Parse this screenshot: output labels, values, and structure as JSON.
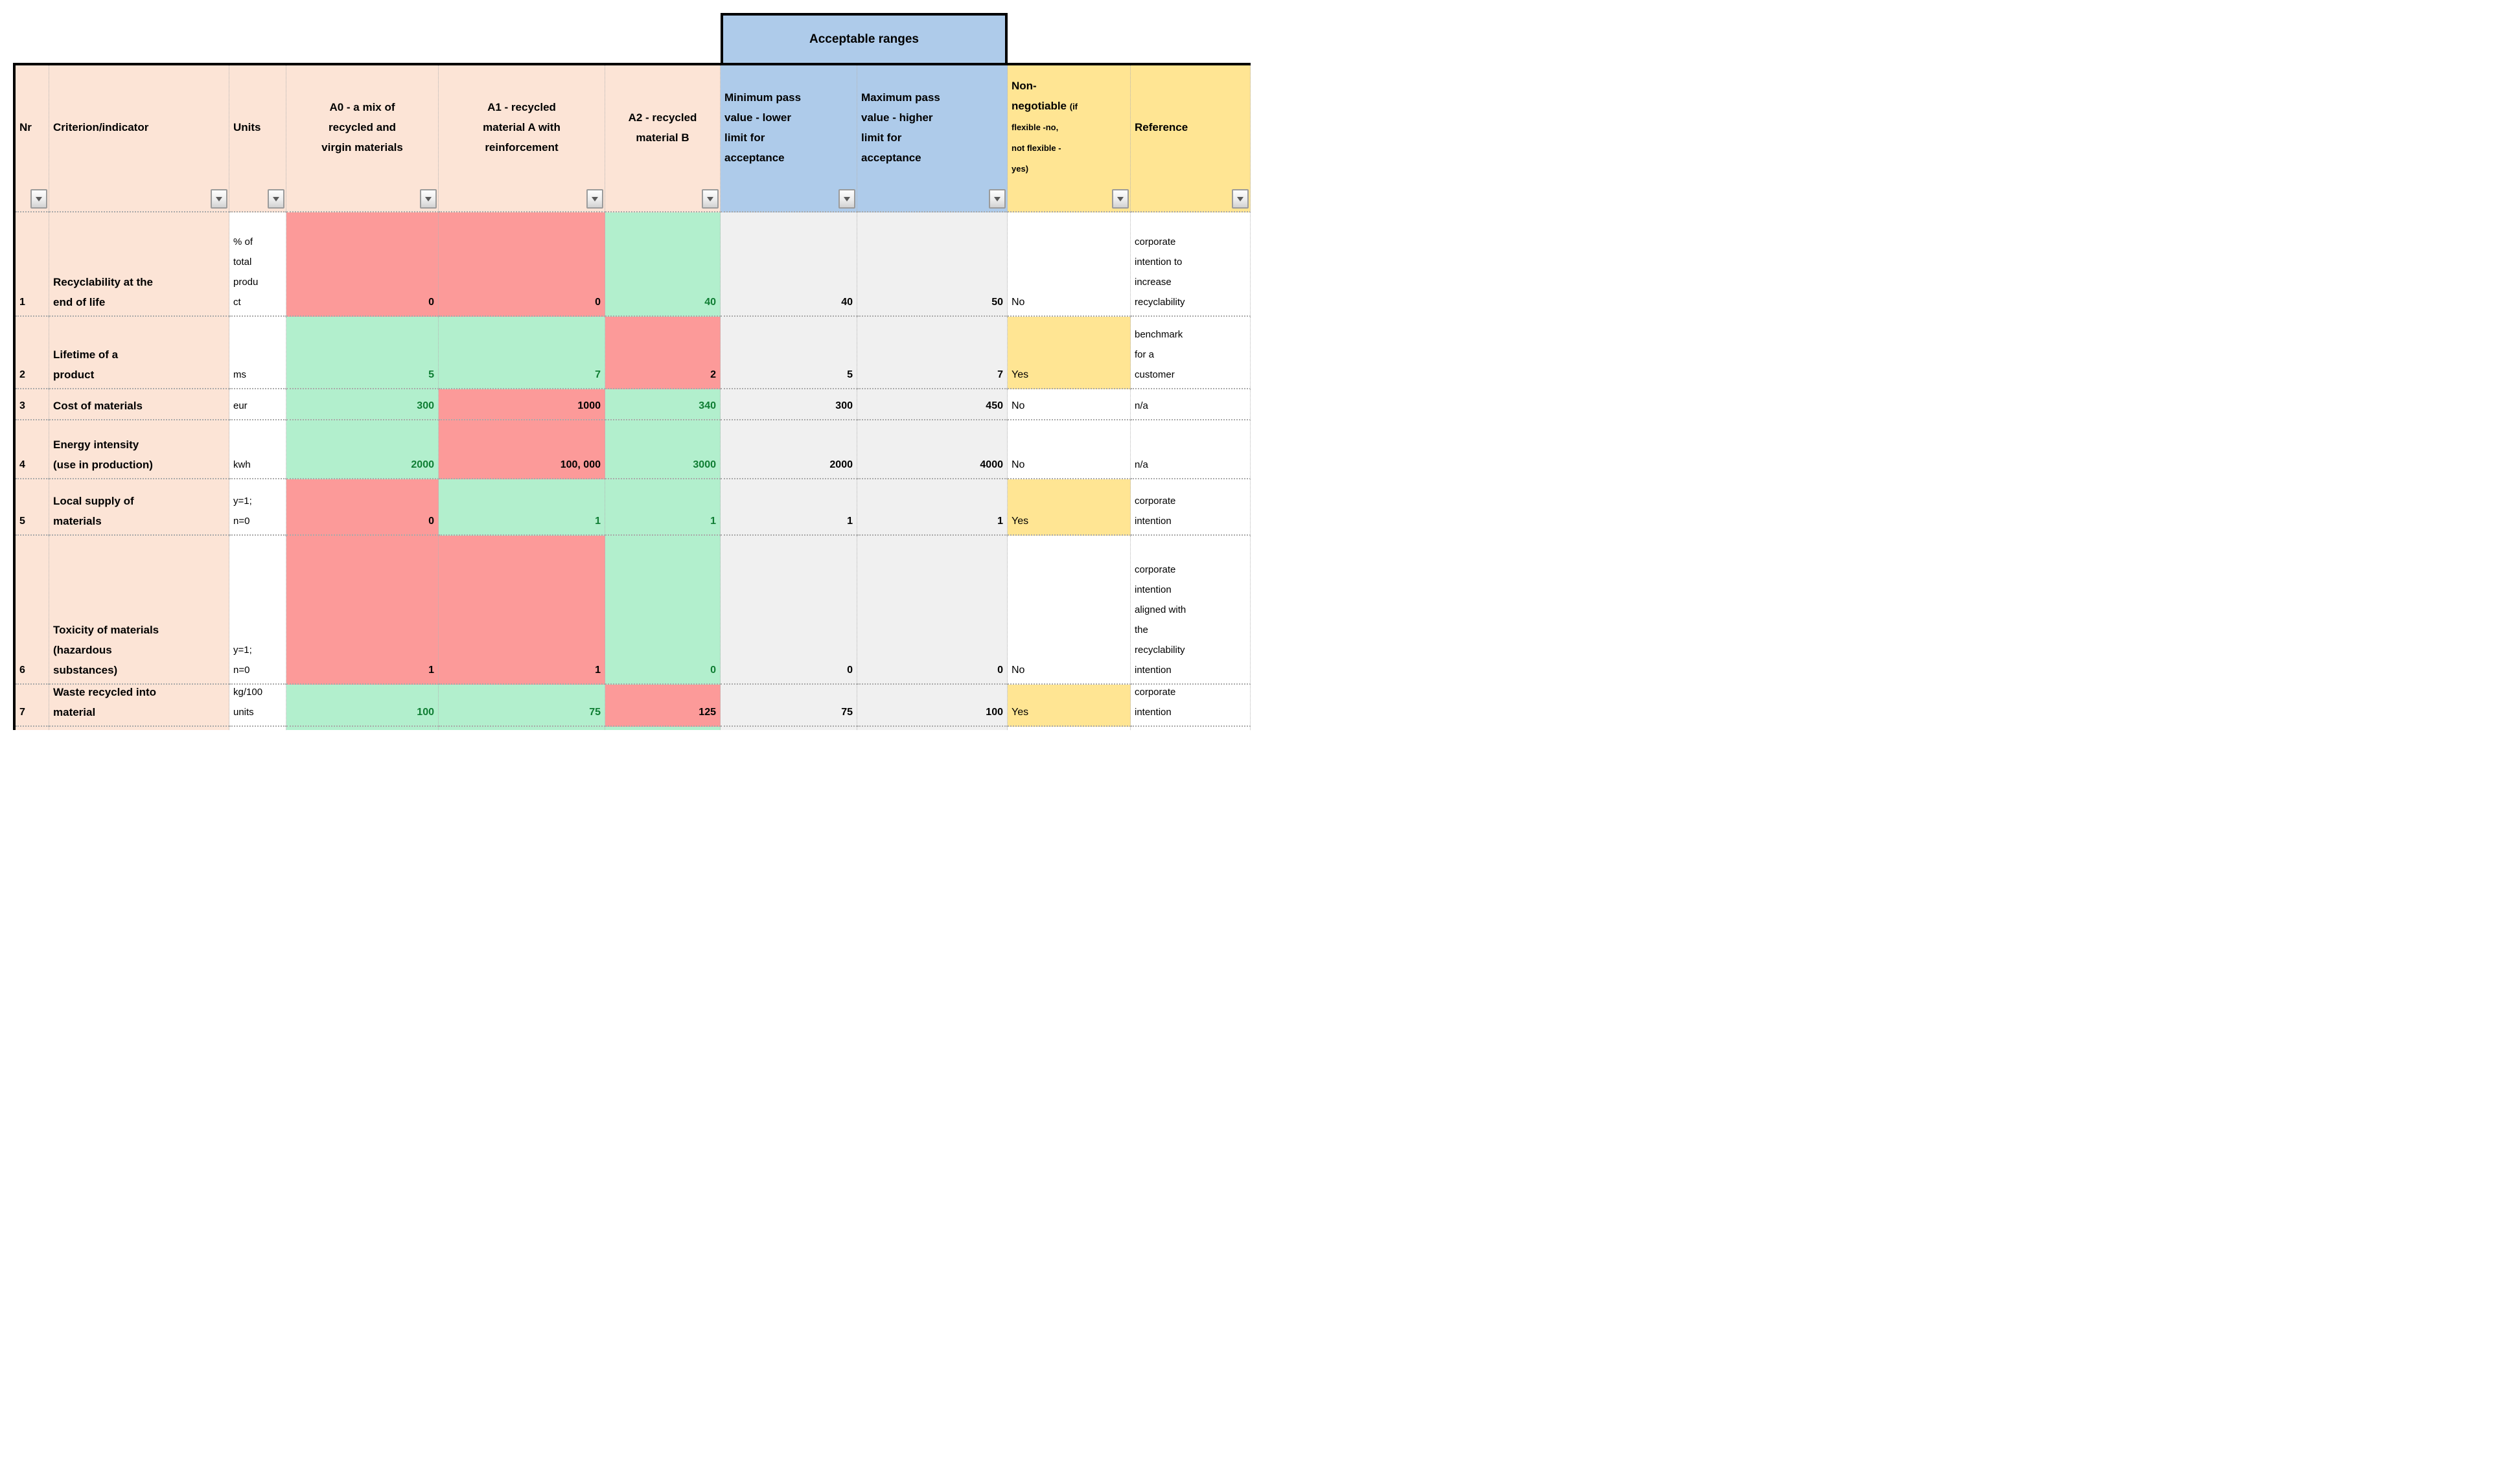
{
  "banner": {
    "label": "Acceptable ranges"
  },
  "colors": {
    "banner_blue": "#AECBEA",
    "header_peach": "#FCE4D6",
    "header_yellow": "#FFE593",
    "fail_red": "#FC9A99",
    "pass_green": "#B2EFCD",
    "range_gray": "#F0F0F0",
    "pass_text_green": "#0F7D33"
  },
  "columns": [
    {
      "id": "nr",
      "label": "Nr",
      "bg": "peach",
      "align": "left"
    },
    {
      "id": "criterion",
      "label": "Criterion/indicator",
      "bg": "peach",
      "align": "left"
    },
    {
      "id": "units",
      "label": "Units",
      "bg": "peach",
      "align": "left"
    },
    {
      "id": "a0",
      "label": "A0 - a mix of\nrecycled and\nvirgin materials",
      "bg": "peach",
      "align": "center"
    },
    {
      "id": "a1",
      "label": "A1 - recycled\nmaterial A with\nreinforcement",
      "bg": "peach",
      "align": "center"
    },
    {
      "id": "a2",
      "label": "A2 - recycled\nmaterial B",
      "bg": "peach",
      "align": "center"
    },
    {
      "id": "min",
      "label": "Minimum pass\nvalue - lower\nlimit for\nacceptance",
      "bg": "blue",
      "align": "left"
    },
    {
      "id": "max",
      "label": "Maximum pass\nvalue - higher\nlimit for\nacceptance",
      "bg": "blue",
      "align": "left"
    },
    {
      "id": "nonneg",
      "label": "Non-\nnegotiable ",
      "note": "(if\nflexible -no,\nnot flexible -\nyes)",
      "bg": "yellow",
      "align": "left"
    },
    {
      "id": "reference",
      "label": "Reference",
      "bg": "yellow",
      "align": "left"
    }
  ],
  "rows": [
    {
      "nr": "1",
      "criterion": "Recyclability at the\nend of life",
      "units": "% of\ntotal\nprodu\nct",
      "a0": {
        "v": "0",
        "bg": "red"
      },
      "a1": {
        "v": "0",
        "bg": "red"
      },
      "a2": {
        "v": "40",
        "bg": "green"
      },
      "min": "40",
      "max": "50",
      "nonneg": {
        "v": "No",
        "bg": "white"
      },
      "reference": "corporate\nintention to\nincrease\nrecyclability"
    },
    {
      "nr": "2",
      "criterion": "Lifetime of a\nproduct",
      "units": "ms",
      "a0": {
        "v": "5",
        "bg": "green"
      },
      "a1": {
        "v": "7",
        "bg": "green"
      },
      "a2": {
        "v": "2",
        "bg": "red"
      },
      "min": "5",
      "max": "7",
      "nonneg": {
        "v": "Yes",
        "bg": "yellow"
      },
      "reference": "benchmark\nfor a\ncustomer"
    },
    {
      "nr": "3",
      "criterion": "Cost of materials",
      "units": "eur",
      "a0": {
        "v": "300",
        "bg": "green"
      },
      "a1": {
        "v": "1000",
        "bg": "red"
      },
      "a2": {
        "v": "340",
        "bg": "green"
      },
      "min": "300",
      "max": "450",
      "nonneg": {
        "v": "No",
        "bg": "white"
      },
      "reference": "n/a"
    },
    {
      "nr": "4",
      "criterion": "Energy intensity\n(use in production)",
      "units": "kwh",
      "a0": {
        "v": "2000",
        "bg": "green"
      },
      "a1": {
        "v": "100, 000",
        "bg": "red"
      },
      "a2": {
        "v": "3000",
        "bg": "green"
      },
      "min": "2000",
      "max": "4000",
      "nonneg": {
        "v": "No",
        "bg": "white"
      },
      "reference": "n/a"
    },
    {
      "nr": "5",
      "criterion": "Local supply of\nmaterials",
      "units": "y=1;\nn=0",
      "a0": {
        "v": "0",
        "bg": "red"
      },
      "a1": {
        "v": "1",
        "bg": "green"
      },
      "a2": {
        "v": "1",
        "bg": "green"
      },
      "min": "1",
      "max": "1",
      "nonneg": {
        "v": "Yes",
        "bg": "yellow"
      },
      "reference": "corporate\nintention"
    },
    {
      "nr": "6",
      "criterion": "Toxicity of materials\n(hazardous\nsubstances)",
      "units": "y=1;\nn=0",
      "a0": {
        "v": "1",
        "bg": "red"
      },
      "a1": {
        "v": "1",
        "bg": "red"
      },
      "a2": {
        "v": "0",
        "bg": "green"
      },
      "min": "0",
      "max": "0",
      "nonneg": {
        "v": "No",
        "bg": "white"
      },
      "reference": "corporate\nintention\naligned with\nthe\nrecyclability\nintention"
    },
    {
      "nr": "7",
      "criterion": "Waste recycled into\nmaterial",
      "units": "kg/100\nunits",
      "a0": {
        "v": "100",
        "bg": "green"
      },
      "a1": {
        "v": "75",
        "bg": "green"
      },
      "a2": {
        "v": "125",
        "bg": "red"
      },
      "min": "75",
      "max": "100",
      "nonneg": {
        "v": "Yes",
        "bg": "yellow"
      },
      "reference": "corporate\nintention"
    }
  ],
  "partial_row": {
    "cells": [
      "peach",
      "peach",
      "white",
      "green",
      "green",
      "green",
      "gray",
      "gray",
      "white",
      "white"
    ]
  }
}
